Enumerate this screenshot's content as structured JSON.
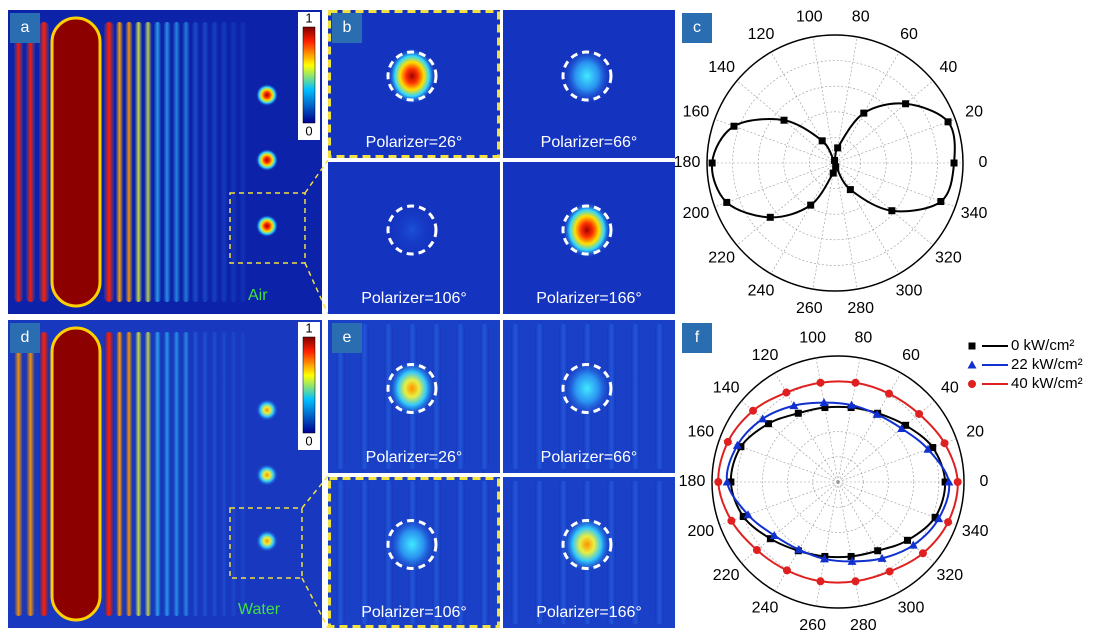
{
  "panels": [
    {
      "label": "a",
      "medium": "Air",
      "colorbar": [
        1,
        0
      ]
    },
    {
      "label": "b",
      "images": [
        "Polarizer=26°",
        "Polarizer=66°",
        "Polarizer=106°",
        "Polarizer=166°"
      ]
    },
    {
      "label": "c"
    },
    {
      "label": "d",
      "medium": "Water",
      "colorbar": [
        1,
        0
      ]
    },
    {
      "label": "e",
      "images": [
        "Polarizer=26°",
        "Polarizer=66°",
        "Polarizer=106°",
        "Polarizer=166°"
      ]
    },
    {
      "label": "f"
    }
  ],
  "chart_data": [
    {
      "type": "polar",
      "theta": [
        0,
        20,
        40,
        60,
        80,
        100,
        120,
        140,
        160,
        180,
        200,
        220,
        240,
        260,
        280,
        300,
        320,
        340
      ],
      "thetaticks": [
        0,
        20,
        40,
        60,
        80,
        100,
        120,
        140,
        160,
        180,
        200,
        220,
        240,
        260,
        280,
        300,
        320,
        340
      ],
      "ylim": [
        0,
        1
      ],
      "series": [
        {
          "color": "#000000",
          "marker": "square",
          "values": [
            0.93,
            0.94,
            0.72,
            0.45,
            0.12,
            0.02,
            0.2,
            0.52,
            0.84,
            0.96,
            0.9,
            0.66,
            0.38,
            0.08,
            0.03,
            0.24,
            0.58,
            0.88
          ]
        }
      ]
    },
    {
      "type": "polar",
      "theta": [
        0,
        20,
        40,
        60,
        80,
        100,
        120,
        140,
        160,
        180,
        200,
        220,
        240,
        260,
        280,
        300,
        320,
        340
      ],
      "thetaticks": [
        0,
        20,
        40,
        60,
        80,
        100,
        120,
        140,
        160,
        180,
        200,
        220,
        240,
        260,
        280,
        300,
        320,
        340
      ],
      "ylim": [
        0,
        1
      ],
      "series": [
        {
          "name": "0 kW/cm²",
          "color": "#000000",
          "marker": "square",
          "values": [
            0.85,
            0.8,
            0.7,
            0.63,
            0.6,
            0.6,
            0.63,
            0.72,
            0.82,
            0.85,
            0.8,
            0.7,
            0.63,
            0.6,
            0.6,
            0.63,
            0.72,
            0.82
          ]
        },
        {
          "name": "22 kW/cm²",
          "color": "#1030d0",
          "marker": "triangle",
          "values": [
            0.88,
            0.76,
            0.66,
            0.62,
            0.62,
            0.64,
            0.7,
            0.78,
            0.85,
            0.88,
            0.76,
            0.66,
            0.62,
            0.62,
            0.64,
            0.7,
            0.78,
            0.85
          ]
        },
        {
          "name": "40 kW/cm²",
          "color": "#e02020",
          "marker": "circle",
          "values": [
            0.95,
            0.9,
            0.84,
            0.81,
            0.8,
            0.8,
            0.82,
            0.88,
            0.93,
            0.95,
            0.9,
            0.84,
            0.81,
            0.8,
            0.8,
            0.82,
            0.88,
            0.93
          ]
        }
      ],
      "legend": "top-right"
    }
  ]
}
